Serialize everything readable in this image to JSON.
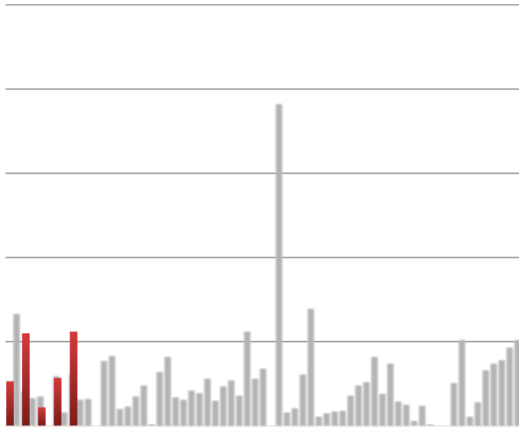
{
  "chart_data": {
    "type": "bar",
    "title": "",
    "xlabel": "",
    "ylabel": "",
    "ylim": [
      0,
      5
    ],
    "gridlines": [
      1,
      2,
      3,
      4,
      5
    ],
    "grid": true,
    "legend": "none",
    "colors": {
      "highlight": "#c63333",
      "highlight_dark": "#8f1f1f",
      "muted": "#b8b8b8",
      "muted_dark": "#8e8e8e",
      "grid": "#7d7d7d"
    },
    "series": [
      {
        "values": [
          0.53,
          0,
          1.1,
          0,
          0.22,
          0,
          0.57,
          0,
          1.12,
          0,
          0,
          0,
          0,
          0,
          0,
          0,
          0,
          0,
          0,
          0,
          0,
          0,
          0,
          0,
          0,
          0,
          0,
          0,
          0,
          0,
          0,
          0,
          0,
          0,
          0,
          0,
          0,
          0,
          0,
          0,
          0,
          0,
          0,
          0,
          0,
          0,
          0,
          0,
          0,
          0,
          0,
          0,
          0,
          0,
          0,
          0,
          0,
          0,
          0,
          0,
          0,
          0,
          0,
          0
        ]
      },
      {
        "values": [
          1.33,
          0.41,
          0.33,
          0.35,
          0,
          0.59,
          0.16,
          0.61,
          0.31,
          0.32,
          0,
          0.77,
          0.83,
          0.2,
          0.23,
          0.35,
          0.48,
          0.02,
          0.64,
          0.82,
          0.34,
          0.31,
          0.42,
          0.39,
          0.56,
          0.3,
          0.47,
          0.54,
          0.36,
          1.12,
          0.56,
          0.68,
          0,
          3.82,
          0.16,
          0.21,
          0.61,
          1.39,
          0.11,
          0.15,
          0.17,
          0.18,
          0.36,
          0.48,
          0.52,
          0.82,
          0.38,
          0.74,
          0.29,
          0.25,
          0.06,
          0.24,
          0.02,
          0,
          0,
          0.51,
          1.02,
          0.11,
          0.28,
          0.66,
          0.74,
          0.78,
          0.93,
          1.02
        ]
      }
    ]
  }
}
